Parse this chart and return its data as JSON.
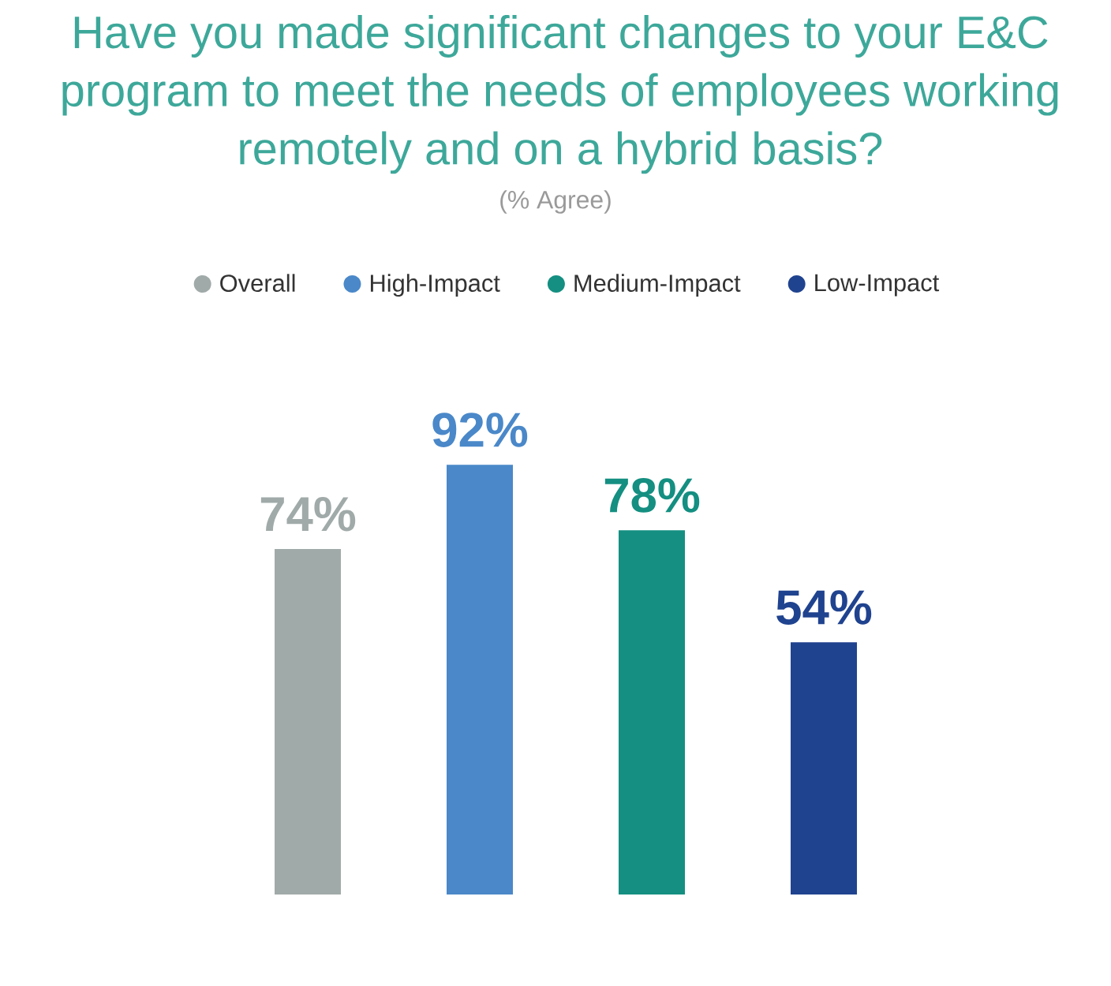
{
  "chart_data": {
    "type": "bar",
    "title": "Have you made significant changes to your E&C program to meet the needs of employees working remotely and on a hybrid basis?",
    "subtitle": "(% Agree)",
    "categories": [
      null,
      null,
      null,
      null
    ],
    "stacked": true,
    "series": [
      {
        "name": "Overall",
        "color": "#a0aaa9",
        "values": [
          74,
          null,
          null,
          null
        ],
        "value_labels": [
          "74%",
          null,
          null,
          null
        ]
      },
      {
        "name": "High-Impact",
        "color": "#4a88c9",
        "values": [
          null,
          92,
          null,
          null
        ],
        "value_labels": [
          null,
          "92%",
          null,
          null
        ]
      },
      {
        "name": "Medium-Impact",
        "color": "#148f81",
        "values": [
          null,
          null,
          78,
          null
        ],
        "value_labels": [
          null,
          null,
          "78%",
          null
        ]
      },
      {
        "name": "Low-Impact",
        "color": "#20438f",
        "values": [
          null,
          null,
          null,
          54
        ],
        "value_labels": [
          null,
          null,
          null,
          "54%"
        ]
      }
    ],
    "legend": "top"
  }
}
